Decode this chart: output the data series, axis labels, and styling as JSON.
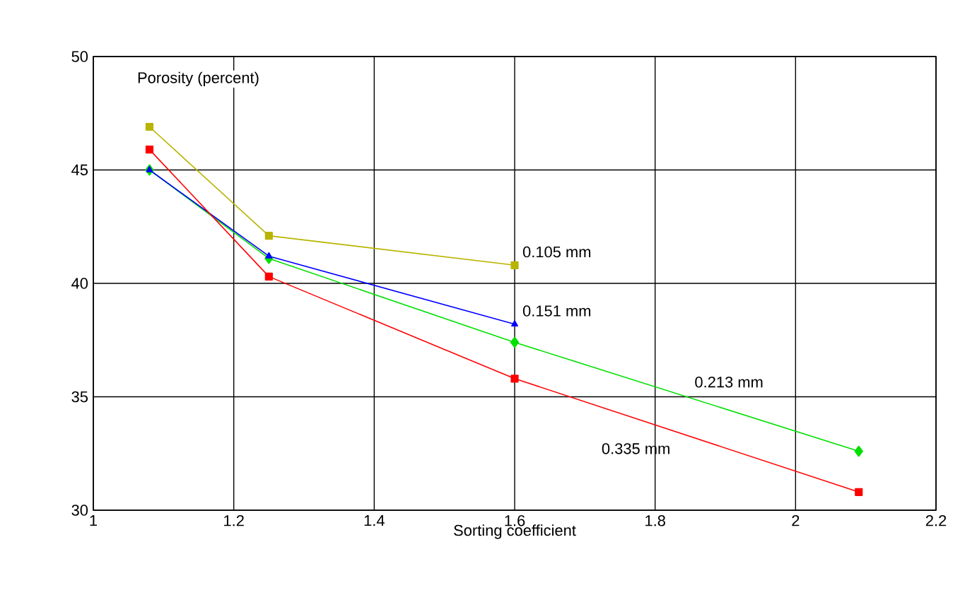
{
  "chart_data": {
    "type": "line",
    "ylabel": "Porosity (percent)",
    "xlabel": "Sorting coefficient",
    "xlim": [
      1,
      2.2
    ],
    "ylim": [
      30,
      50
    ],
    "xticks": [
      1,
      1.2,
      1.4,
      1.6,
      1.8,
      2,
      2.2
    ],
    "yticks": [
      30,
      35,
      40,
      45,
      50
    ],
    "grid": true,
    "legend": false,
    "series": [
      {
        "name": "0.105 mm",
        "color": "#b8b400",
        "marker": "square",
        "x": [
          1.08,
          1.25,
          1.6
        ],
        "values": [
          46.9,
          42.1,
          40.8
        ]
      },
      {
        "name": "0.213 mm",
        "color": "#00e000",
        "marker": "diamond",
        "x": [
          1.08,
          1.25,
          1.6,
          2.09
        ],
        "values": [
          45.0,
          41.1,
          37.4,
          32.6
        ]
      },
      {
        "name": "0.151 mm",
        "color": "#0000ff",
        "marker": "triangle",
        "x": [
          1.08,
          1.25,
          1.6
        ],
        "values": [
          45.0,
          41.2,
          38.2
        ]
      },
      {
        "name": "0.335 mm",
        "color": "#ff0000",
        "marker": "square",
        "x": [
          1.08,
          1.25,
          1.6,
          2.09
        ],
        "values": [
          45.9,
          40.3,
          35.8,
          30.8
        ]
      }
    ]
  }
}
